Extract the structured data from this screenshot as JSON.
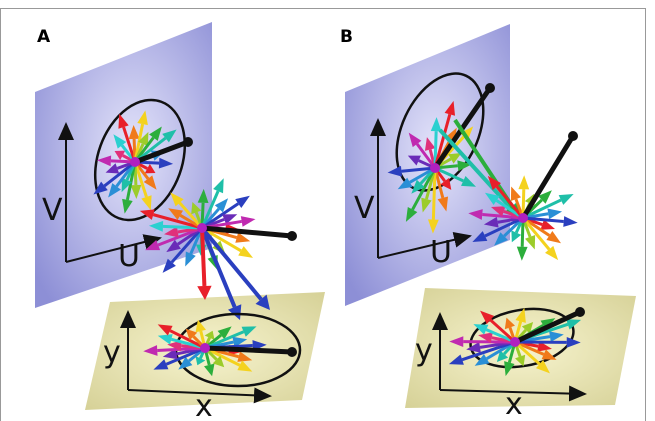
{
  "panels": [
    {
      "label": "A",
      "plane_axes": {
        "vertical": "V",
        "horizontal": "U"
      },
      "floor_axes": {
        "vertical": "y",
        "horizontal": "x"
      }
    },
    {
      "label": "B",
      "plane_axes": {
        "vertical": "V",
        "horizontal": "U"
      },
      "floor_axes": {
        "vertical": "y",
        "horizontal": "x"
      }
    }
  ]
}
